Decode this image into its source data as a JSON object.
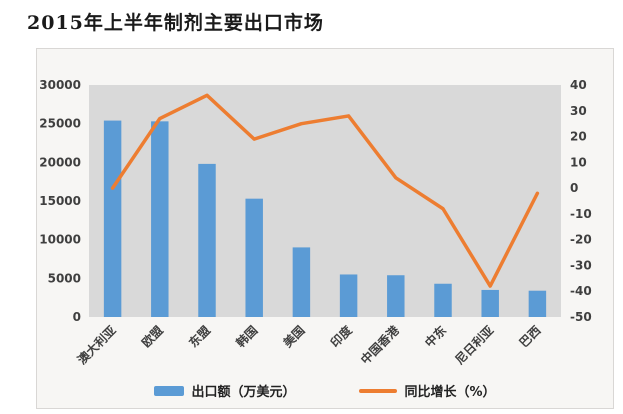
{
  "page": {
    "title": "2015年上半年制剂主要出口市场"
  },
  "chart_data": {
    "type": "bar",
    "subtype": "bar-line-combo",
    "title": "2015年上半年制剂主要出口市场",
    "categories": [
      "澳大利亚",
      "欧盟",
      "东盟",
      "韩国",
      "美国",
      "印度",
      "中国香港",
      "中东",
      "尼日利亚",
      "巴西"
    ],
    "series": [
      {
        "name": "出口额（万美元）",
        "type": "bar",
        "axis": "left",
        "color": "#5B9BD5",
        "values": [
          25400,
          25300,
          19800,
          15300,
          9000,
          5500,
          5400,
          4300,
          3500,
          3400
        ]
      },
      {
        "name": "同比增长（%）",
        "type": "line",
        "axis": "right",
        "color": "#ED7D31",
        "values": [
          0,
          27,
          36,
          19,
          25,
          28,
          4,
          -8,
          -38,
          -2
        ]
      }
    ],
    "left_axis": {
      "min": 0,
      "max": 30000,
      "step": 5000
    },
    "right_axis": {
      "min": -50,
      "max": 40,
      "step": 10
    },
    "xlabel": "",
    "ylabel": "",
    "grid": false,
    "legend_position": "bottom",
    "plot_background": "#D9D9D9",
    "tick_color": "#3f3f3f"
  }
}
